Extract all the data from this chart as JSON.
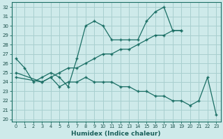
{
  "xlabel": "Humidex (Indice chaleur)",
  "ylabel": "",
  "xlim": [
    -0.5,
    23.5
  ],
  "ylim": [
    19.8,
    32.5
  ],
  "yticks": [
    20,
    21,
    22,
    23,
    24,
    25,
    26,
    27,
    28,
    29,
    30,
    31,
    32
  ],
  "xticks": [
    0,
    1,
    2,
    3,
    4,
    5,
    6,
    7,
    8,
    9,
    10,
    11,
    12,
    13,
    14,
    15,
    16,
    17,
    18,
    19,
    20,
    21,
    22,
    23
  ],
  "bg_color": "#ceeaea",
  "grid_color": "#a8cfcf",
  "line_color": "#1a6e64",
  "series": [
    {
      "x": [
        0,
        1,
        2,
        3,
        4,
        5,
        6,
        7,
        8,
        9,
        10,
        11,
        12,
        13,
        14,
        15,
        16,
        17,
        18,
        19
      ],
      "y": [
        26.5,
        25.5,
        24.0,
        24.5,
        25.0,
        24.5,
        23.5,
        26.5,
        30.0,
        30.5,
        30.0,
        28.5,
        28.5,
        28.5,
        28.5,
        30.5,
        31.5,
        32.0,
        29.5,
        29.5
      ]
    },
    {
      "x": [
        0,
        3,
        4,
        5,
        6,
        7,
        8,
        9,
        10,
        11,
        12,
        13,
        14,
        15,
        16,
        17,
        18,
        19
      ],
      "y": [
        24.5,
        24.0,
        24.5,
        25.0,
        25.5,
        25.5,
        26.0,
        26.5,
        27.0,
        27.0,
        27.5,
        27.5,
        28.0,
        28.5,
        29.0,
        29.0,
        29.5,
        29.5
      ]
    },
    {
      "x": [
        0,
        3,
        4,
        5,
        6,
        7,
        8,
        9,
        10,
        11,
        12,
        13,
        14,
        15,
        16,
        17,
        18,
        19,
        20,
        21,
        22,
        23
      ],
      "y": [
        25.0,
        24.0,
        24.5,
        23.5,
        24.0,
        24.0,
        24.5,
        24.0,
        24.0,
        24.0,
        23.5,
        23.5,
        23.0,
        23.0,
        22.5,
        22.5,
        22.0,
        22.0,
        21.5,
        22.0,
        24.5,
        20.5
      ]
    }
  ]
}
